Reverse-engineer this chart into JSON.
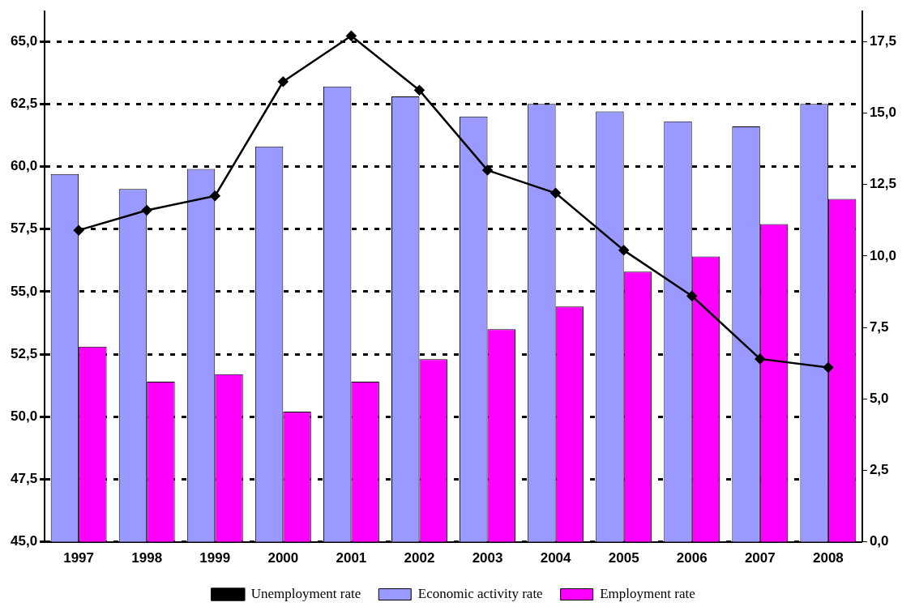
{
  "chart_data": {
    "type": "bar",
    "categories": [
      "1997",
      "1998",
      "1999",
      "2000",
      "2001",
      "2002",
      "2003",
      "2004",
      "2005",
      "2006",
      "2007",
      "2008"
    ],
    "series": [
      {
        "name": "Economic activity rate",
        "color": "#9999ff",
        "values": [
          59.7,
          59.1,
          59.9,
          60.8,
          63.2,
          62.8,
          62.0,
          62.5,
          62.2,
          61.8,
          61.6,
          62.5
        ]
      },
      {
        "name": "Employment rate",
        "color": "#ff00ff",
        "values": [
          52.8,
          51.4,
          51.7,
          50.2,
          51.4,
          52.3,
          53.5,
          54.4,
          55.8,
          56.4,
          57.7,
          58.7
        ]
      },
      {
        "name": "Unemployment rate",
        "type": "line",
        "axis": "y2",
        "color": "#000000",
        "values": [
          10.9,
          11.6,
          12.1,
          16.1,
          17.7,
          15.8,
          13.0,
          12.2,
          10.2,
          8.6,
          6.4,
          6.1
        ]
      }
    ],
    "ylim": [
      45,
      66.2
    ],
    "yticks": [
      {
        "value": 45,
        "label": "45,0"
      },
      {
        "value": 47.5,
        "label": "47,5"
      },
      {
        "value": 50,
        "label": "50,0"
      },
      {
        "value": 52.5,
        "label": "52,5"
      },
      {
        "value": 55,
        "label": "55,0"
      },
      {
        "value": 57.5,
        "label": "57,5"
      },
      {
        "value": 60,
        "label": "60,0"
      },
      {
        "value": 62.5,
        "label": "62,5"
      },
      {
        "value": 65,
        "label": "65,0"
      }
    ],
    "y2lim": [
      0,
      18.56
    ],
    "y2ticks": [
      {
        "value": 0,
        "label": "0,0"
      },
      {
        "value": 2.5,
        "label": "2,5"
      },
      {
        "value": 5,
        "label": "5,0"
      },
      {
        "value": 7.5,
        "label": "7,5"
      },
      {
        "value": 10,
        "label": "10,0"
      },
      {
        "value": 12.5,
        "label": "12,5"
      },
      {
        "value": 15,
        "label": "15,0"
      },
      {
        "value": 17.5,
        "label": "17,5"
      }
    ],
    "grid": "y",
    "line_style": "solid",
    "marker": "diamond",
    "legend": "bottom"
  }
}
